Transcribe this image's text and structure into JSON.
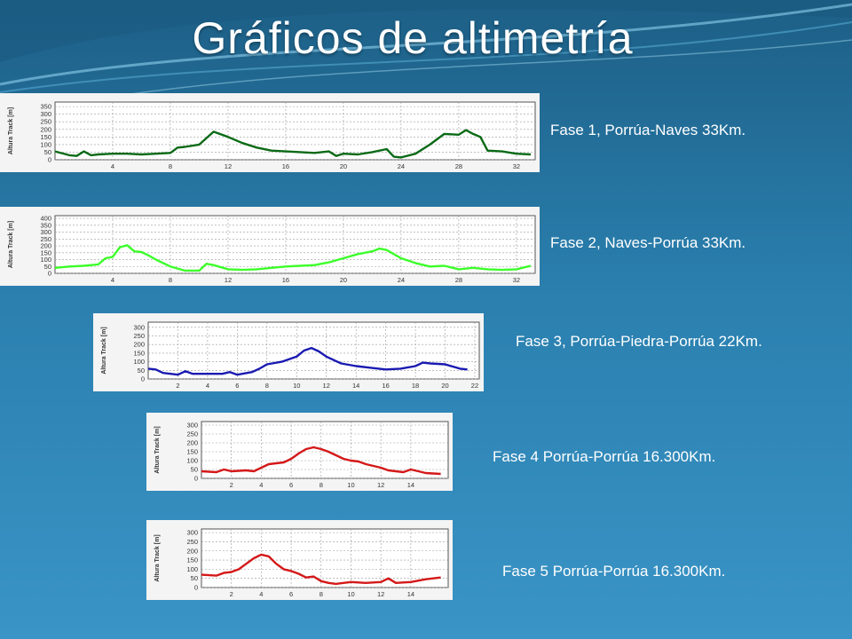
{
  "slide": {
    "title": "Gráficos de altimetría",
    "background": "#2a7fae"
  },
  "chart_data": [
    {
      "type": "line",
      "label": "Fase 1, Porrúa-Naves 33Km.",
      "ylabel": "Altura Track [m]",
      "color": "#0a6a16",
      "xlim": [
        0,
        33.3
      ],
      "ylim": [
        0,
        380
      ],
      "yticks": [
        0,
        50,
        100,
        150,
        200,
        250,
        300,
        350
      ],
      "xticks": [
        4,
        8,
        12,
        16,
        20,
        24,
        28,
        32
      ],
      "x": [
        0,
        1,
        1.5,
        2,
        2.5,
        3,
        4,
        5,
        6,
        7,
        8,
        8.5,
        9,
        10,
        11,
        12,
        13,
        14,
        15,
        16,
        17,
        18,
        19,
        19.5,
        20,
        21,
        22,
        23,
        23.5,
        24,
        25,
        26,
        27,
        28,
        28.5,
        29,
        29.5,
        30,
        31,
        32,
        33
      ],
      "y": [
        55,
        30,
        25,
        55,
        30,
        35,
        40,
        40,
        35,
        40,
        45,
        80,
        85,
        100,
        185,
        150,
        110,
        80,
        60,
        55,
        50,
        45,
        55,
        25,
        40,
        35,
        50,
        70,
        20,
        15,
        40,
        100,
        170,
        165,
        195,
        170,
        150,
        60,
        55,
        40,
        35
      ]
    },
    {
      "type": "line",
      "label": "Fase 2, Naves-Porrúa 33Km.",
      "ylabel": "Altura Track [m]",
      "color": "#3cff2a",
      "xlim": [
        0,
        33.3
      ],
      "ylim": [
        0,
        420
      ],
      "yticks": [
        0,
        50,
        100,
        150,
        200,
        250,
        300,
        350,
        400
      ],
      "xticks": [
        4,
        8,
        12,
        16,
        20,
        24,
        28,
        32
      ],
      "x": [
        0,
        1,
        2,
        3,
        3.5,
        4,
        4.5,
        5,
        5.5,
        6,
        6.5,
        7,
        8,
        9,
        10,
        10.5,
        11,
        12,
        13,
        14,
        15,
        16,
        17,
        18,
        19,
        20,
        21,
        22,
        22.5,
        23,
        24,
        25,
        26,
        27,
        28,
        29,
        30,
        31,
        32,
        33
      ],
      "y": [
        40,
        50,
        55,
        65,
        110,
        120,
        190,
        205,
        160,
        155,
        130,
        100,
        50,
        20,
        20,
        70,
        60,
        30,
        25,
        30,
        40,
        50,
        55,
        60,
        80,
        110,
        140,
        160,
        180,
        170,
        110,
        75,
        50,
        55,
        30,
        40,
        30,
        25,
        30,
        55
      ]
    },
    {
      "type": "line",
      "label": "Fase 3, Porrúa-Piedra-Porrúa 22Km.",
      "ylabel": "Altura Track [m]",
      "color": "#1a1ab2",
      "xlim": [
        0,
        22.3
      ],
      "ylim": [
        0,
        330
      ],
      "yticks": [
        0,
        50,
        100,
        150,
        200,
        250,
        300
      ],
      "xticks": [
        2,
        4,
        6,
        8,
        10,
        12,
        14,
        16,
        18,
        20,
        22
      ],
      "x": [
        0,
        0.5,
        1,
        1.5,
        2,
        2.5,
        3,
        4,
        5,
        5.5,
        6,
        7,
        7.5,
        8,
        9,
        10,
        10.5,
        11,
        11.5,
        12,
        13,
        14,
        15,
        16,
        17,
        18,
        18.5,
        19,
        20,
        21,
        21.5
      ],
      "y": [
        60,
        55,
        35,
        30,
        25,
        45,
        30,
        30,
        30,
        40,
        25,
        40,
        60,
        85,
        100,
        130,
        165,
        180,
        160,
        130,
        90,
        75,
        65,
        55,
        60,
        75,
        95,
        90,
        85,
        60,
        55
      ]
    },
    {
      "type": "line",
      "label": "Fase 4 Porrúa-Porrúa 16.300Km.",
      "ylabel": "Altura Track [m]",
      "color": "#d41818",
      "xlim": [
        0,
        16.5
      ],
      "ylim": [
        0,
        320
      ],
      "yticks": [
        0,
        50,
        100,
        150,
        200,
        250,
        300
      ],
      "xticks": [
        2,
        4,
        6,
        8,
        10,
        12,
        14
      ],
      "x": [
        0,
        1,
        1.5,
        2,
        3,
        3.5,
        4,
        4.5,
        5,
        5.5,
        6,
        6.5,
        7,
        7.5,
        8,
        8.5,
        9,
        9.5,
        10,
        10.5,
        11,
        12,
        12.5,
        13,
        13.5,
        14,
        15,
        16
      ],
      "y": [
        40,
        35,
        50,
        40,
        45,
        40,
        60,
        80,
        85,
        90,
        110,
        140,
        165,
        175,
        165,
        150,
        130,
        110,
        100,
        95,
        80,
        60,
        45,
        40,
        35,
        50,
        30,
        25
      ]
    },
    {
      "type": "line",
      "label": "Fase 5 Porrúa-Porrúa 16.300Km.",
      "ylabel": "Altura Track [m]",
      "color": "#d41818",
      "xlim": [
        0,
        16.5
      ],
      "ylim": [
        0,
        320
      ],
      "yticks": [
        0,
        50,
        100,
        150,
        200,
        250,
        300
      ],
      "xticks": [
        2,
        4,
        6,
        8,
        10,
        12,
        14
      ],
      "x": [
        0,
        1,
        1.5,
        2,
        2.5,
        3,
        3.5,
        4,
        4.5,
        5,
        5.5,
        6,
        6.5,
        7,
        7.5,
        8,
        8.5,
        9,
        10,
        11,
        12,
        12.5,
        13,
        14,
        15,
        16
      ],
      "y": [
        70,
        65,
        80,
        85,
        100,
        130,
        160,
        180,
        170,
        130,
        100,
        90,
        75,
        55,
        60,
        35,
        25,
        20,
        30,
        25,
        30,
        50,
        25,
        30,
        45,
        55
      ]
    }
  ]
}
